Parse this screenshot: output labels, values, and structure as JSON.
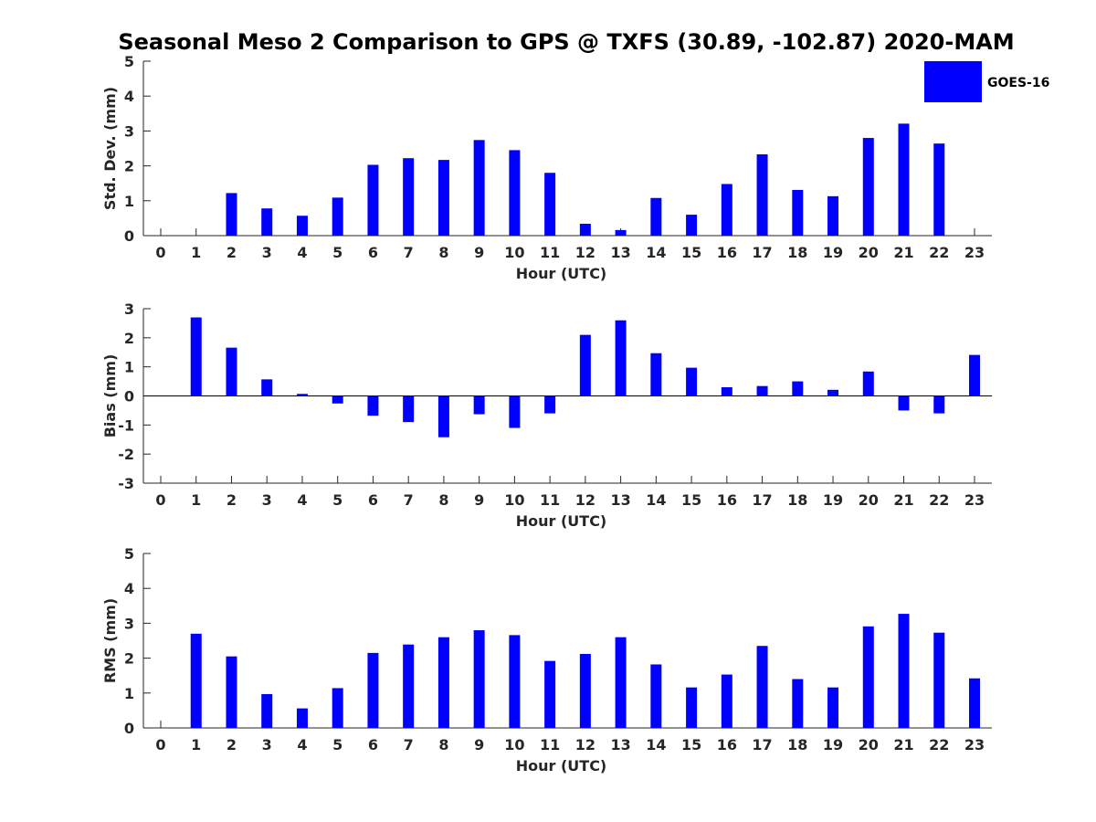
{
  "title": "Seasonal Meso 2 Comparison to GPS @ TXFS (30.89, -102.87) 2020-MAM",
  "bar_color": "#0000ff",
  "legend": {
    "label": "GOES-16"
  },
  "chart_data": [
    {
      "type": "bar",
      "name": "std-dev",
      "title": "Seasonal Meso 2 Comparison to GPS @ TXFS (30.89, -102.87) 2020-MAM",
      "xlabel": "Hour (UTC)",
      "ylabel": "Std. Dev. (mm)",
      "ylim": [
        0,
        5
      ],
      "yticks": [
        0,
        1,
        2,
        3,
        4,
        5
      ],
      "categories": [
        "0",
        "1",
        "2",
        "3",
        "4",
        "5",
        "6",
        "7",
        "8",
        "9",
        "10",
        "11",
        "12",
        "13",
        "14",
        "15",
        "16",
        "17",
        "18",
        "19",
        "20",
        "21",
        "22",
        "23"
      ],
      "series": [
        {
          "name": "GOES-16",
          "values": [
            null,
            null,
            1.22,
            0.78,
            0.57,
            1.09,
            2.03,
            2.22,
            2.17,
            2.74,
            2.45,
            1.8,
            0.34,
            0.16,
            1.08,
            0.6,
            1.48,
            2.33,
            1.31,
            1.13,
            2.8,
            3.21,
            2.64,
            null
          ]
        }
      ]
    },
    {
      "type": "bar",
      "name": "bias",
      "xlabel": "Hour (UTC)",
      "ylabel": "Bias (mm)",
      "ylim": [
        -3,
        3
      ],
      "yticks": [
        -3,
        -2,
        -1,
        0,
        1,
        2,
        3
      ],
      "categories": [
        "0",
        "1",
        "2",
        "3",
        "4",
        "5",
        "6",
        "7",
        "8",
        "9",
        "10",
        "11",
        "12",
        "13",
        "14",
        "15",
        "16",
        "17",
        "18",
        "19",
        "20",
        "21",
        "22",
        "23"
      ],
      "series": [
        {
          "name": "GOES-16",
          "values": [
            null,
            2.7,
            1.66,
            0.57,
            0.07,
            -0.26,
            -0.68,
            -0.9,
            -1.42,
            -0.63,
            -1.1,
            -0.6,
            2.1,
            2.6,
            1.47,
            0.97,
            0.3,
            0.34,
            0.5,
            0.21,
            0.84,
            -0.5,
            -0.6,
            1.41
          ]
        }
      ]
    },
    {
      "type": "bar",
      "name": "rms",
      "xlabel": "Hour (UTC)",
      "ylabel": "RMS (mm)",
      "ylim": [
        0,
        5
      ],
      "yticks": [
        0,
        1,
        2,
        3,
        4,
        5
      ],
      "categories": [
        "0",
        "1",
        "2",
        "3",
        "4",
        "5",
        "6",
        "7",
        "8",
        "9",
        "10",
        "11",
        "12",
        "13",
        "14",
        "15",
        "16",
        "17",
        "18",
        "19",
        "20",
        "21",
        "22",
        "23"
      ],
      "series": [
        {
          "name": "GOES-16",
          "values": [
            null,
            2.7,
            2.05,
            0.97,
            0.56,
            1.14,
            2.15,
            2.39,
            2.6,
            2.8,
            2.66,
            1.92,
            2.12,
            2.6,
            1.82,
            1.16,
            1.53,
            2.35,
            1.4,
            1.16,
            2.91,
            3.27,
            2.73,
            1.42
          ]
        }
      ]
    }
  ]
}
